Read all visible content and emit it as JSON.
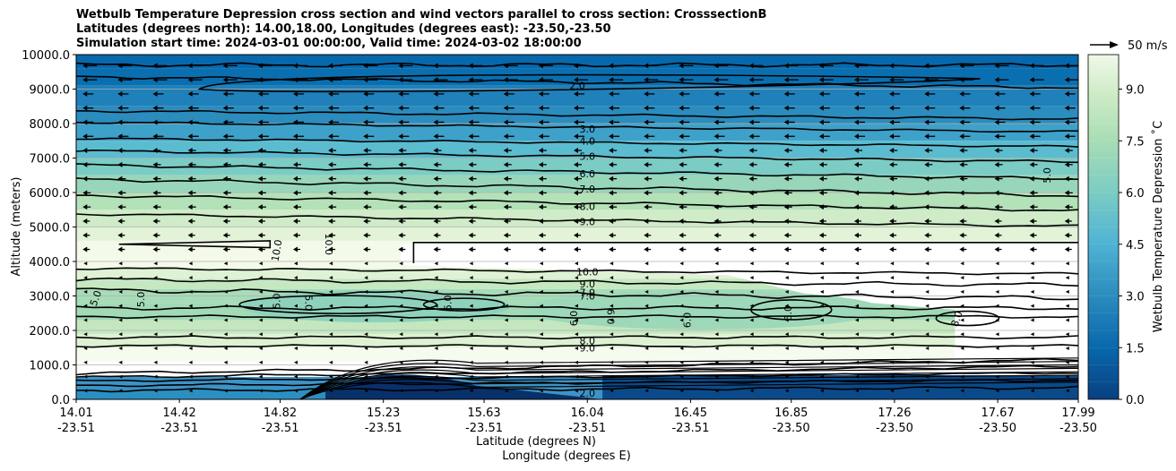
{
  "chart_data": {
    "type": "contour",
    "title": [
      "Wetbulb Temperature Depression cross section and wind vectors parallel to cross section: CrosssectionB",
      "Latitudes (degrees north): 14.00,18.00, Longitudes (degrees east): -23.50,-23.50",
      "Simulation start time: 2024-03-01 00:00:00, Valid time: 2024-03-02 18:00:00"
    ],
    "ylabel": "Altitude (meters)",
    "xlabel_lat": "Latitude (degrees N)",
    "xlabel_lon": "Longitude (degrees E)",
    "ylim": [
      0,
      10000
    ],
    "yticks": [
      "0.0",
      "1000.0",
      "2000.0",
      "3000.0",
      "4000.0",
      "5000.0",
      "6000.0",
      "7000.0",
      "8000.0",
      "9000.0",
      "10000.0"
    ],
    "yticks_values": [
      0,
      1000,
      2000,
      3000,
      4000,
      5000,
      6000,
      7000,
      8000,
      9000,
      10000
    ],
    "xlim": [
      14.01,
      17.99
    ],
    "xticks_lat": [
      "14.01",
      "14.42",
      "14.82",
      "15.23",
      "15.63",
      "16.04",
      "16.45",
      "16.85",
      "17.26",
      "17.67",
      "17.99"
    ],
    "xticks_lon": [
      "-23.51",
      "-23.51",
      "-23.51",
      "-23.51",
      "-23.51",
      "-23.51",
      "-23.51",
      "-23.50",
      "-23.50",
      "-23.50",
      "-23.50"
    ],
    "xticks_values": [
      14.01,
      14.42,
      14.82,
      15.23,
      15.63,
      16.04,
      16.45,
      16.85,
      17.26,
      17.67,
      17.99
    ],
    "grid_y": true,
    "colorbar": {
      "label": "Wetbulb Temperature Depression ˚C",
      "range": [
        0,
        10
      ],
      "ticks": [
        "0.0",
        "1.5",
        "3.0",
        "4.5",
        "6.0",
        "7.5",
        "9.0"
      ],
      "tick_values": [
        0,
        1.5,
        3.0,
        4.5,
        6.0,
        7.5,
        9.0
      ],
      "colormap": "GnBu_r"
    },
    "quiver_key": "50 m/s",
    "contour_levels": [
      {
        "level": 2.0,
        "label": "2.0",
        "label_x": 16.0,
        "label_y": 9100
      },
      {
        "level": 3.0,
        "label": "3.0",
        "label_x": 16.04,
        "label_y": 7850
      },
      {
        "level": 4.0,
        "label": "4.0",
        "label_x": 16.04,
        "label_y": 7500
      },
      {
        "level": 5.0,
        "label": "5.0",
        "label_x": 16.04,
        "label_y": 7050
      },
      {
        "level": 6.0,
        "label": "6.0",
        "label_x": 16.04,
        "label_y": 6550
      },
      {
        "level": 7.0,
        "label": "7.0",
        "label_x": 16.04,
        "label_y": 6100
      },
      {
        "level": 8.0,
        "label": "8.0",
        "label_x": 16.04,
        "label_y": 5600
      },
      {
        "level": 9.0,
        "label": "9.0",
        "label_x": 16.04,
        "label_y": 5150
      },
      {
        "level": 10.0,
        "label": "10.0",
        "label_x": 16.04,
        "label_y": 3700
      },
      {
        "level": 9.0,
        "label": "9.0",
        "label_x": 16.04,
        "label_y": 3350
      },
      {
        "level": 7.0,
        "label": "7.0",
        "label_x": 16.04,
        "label_y": 3000
      },
      {
        "level": 8.0,
        "label": "8.0",
        "label_x": 16.04,
        "label_y": 1700
      },
      {
        "level": 9.0,
        "label": "9.0",
        "label_x": 16.04,
        "label_y": 1500
      },
      {
        "level": 2.0,
        "label": "2.0",
        "label_x": 16.04,
        "label_y": 180
      }
    ],
    "annotation_labels": [
      {
        "label": "10.0",
        "x": 14.82,
        "y": 4300,
        "rotate": -80
      },
      {
        "label": "10.0",
        "x": 15.0,
        "y": 4500,
        "rotate": 90
      },
      {
        "label": "5.0",
        "x": 14.1,
        "y": 2900,
        "rotate": -70
      },
      {
        "label": "5.0",
        "x": 14.28,
        "y": 2900,
        "rotate": -90
      },
      {
        "label": "5.0",
        "x": 14.82,
        "y": 2850,
        "rotate": -90
      },
      {
        "label": "5.0",
        "x": 14.92,
        "y": 2800,
        "rotate": 90
      },
      {
        "label": "5.0",
        "x": 15.5,
        "y": 2800,
        "rotate": -90
      },
      {
        "label": "6.0",
        "x": 16.0,
        "y": 2350,
        "rotate": -90
      },
      {
        "label": "6.0",
        "x": 16.12,
        "y": 2400,
        "rotate": 90
      },
      {
        "label": "6.0",
        "x": 16.45,
        "y": 2300,
        "rotate": -90
      },
      {
        "label": "6.0",
        "x": 16.85,
        "y": 2500,
        "rotate": -90
      },
      {
        "label": "8.0",
        "x": 17.52,
        "y": 2300,
        "rotate": -70
      },
      {
        "label": "5.0",
        "x": 17.88,
        "y": 6500,
        "rotate": -90
      },
      {
        "label": "7.0",
        "x": 16.04,
        "y": 3000,
        "rotate": 0
      }
    ]
  }
}
